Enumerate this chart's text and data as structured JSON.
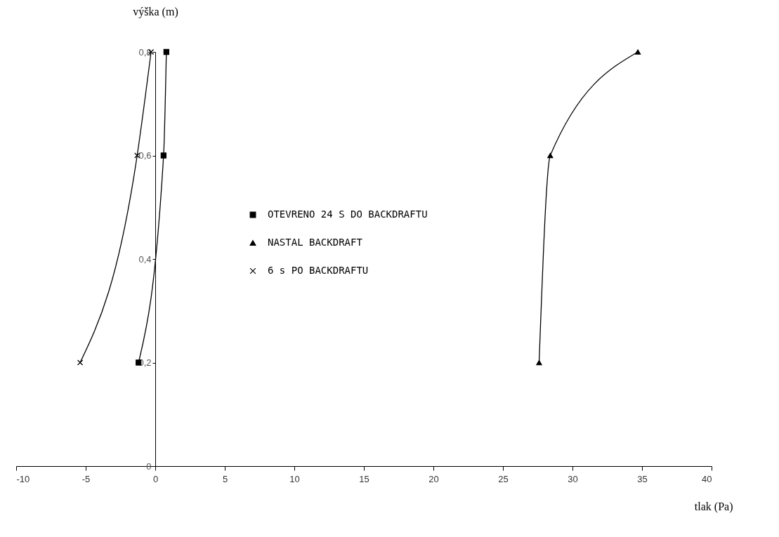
{
  "chart_data": {
    "type": "line",
    "xlabel": "tlak (Pa)",
    "ylabel": "výška (m)",
    "xlim": [
      -10,
      40
    ],
    "xticks": [
      -10,
      -5,
      0,
      5,
      10,
      15,
      20,
      25,
      30,
      35,
      40
    ],
    "ylim": [
      0,
      0.8
    ],
    "yticks": [
      0,
      {
        "value": 0.2,
        "label": "0,2"
      },
      {
        "value": 0.4,
        "label": "0,4"
      },
      {
        "value": 0.6,
        "label": "0,6"
      },
      {
        "value": 0.8,
        "label": "0,8"
      }
    ],
    "grid": false,
    "legend": "left",
    "series": [
      {
        "name": "OTEVRENO 24 S DO BACKDRAFTU",
        "color": "#000000",
        "marker": "square",
        "x": [
          -1.2,
          0.6,
          0.8
        ],
        "values": [
          0.2,
          0.6,
          0.8
        ]
      },
      {
        "name": "NASTAL BACKDRAFT",
        "color": "#000000",
        "marker": "triangle",
        "x": [
          27.6,
          28.4,
          34.7
        ],
        "values": [
          0.2,
          0.6,
          0.8
        ]
      },
      {
        "name": "6 s PO BACKDRAFTU",
        "color": "#000000",
        "marker": "cross",
        "x": [
          -5.4,
          -1.3,
          -0.3
        ],
        "values": [
          0.2,
          0.6,
          0.8
        ]
      }
    ]
  }
}
